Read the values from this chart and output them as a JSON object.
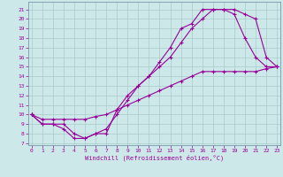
{
  "line1_x": [
    0,
    1,
    2,
    3,
    4,
    5,
    6,
    7,
    8,
    9,
    10,
    11,
    12,
    13,
    14,
    15,
    16,
    17,
    18,
    19,
    20,
    21,
    22,
    23
  ],
  "line1_y": [
    10,
    9,
    9,
    9,
    8,
    7.5,
    8,
    8,
    10.5,
    12,
    13,
    14,
    15.5,
    17,
    19,
    19.5,
    21,
    21,
    21,
    21,
    20.5,
    20,
    16,
    15
  ],
  "line2_x": [
    0,
    1,
    2,
    3,
    4,
    5,
    6,
    7,
    8,
    9,
    10,
    11,
    12,
    13,
    14,
    15,
    16,
    17,
    18,
    19,
    20,
    21,
    22,
    23
  ],
  "line2_y": [
    10,
    9,
    9,
    8.5,
    7.5,
    7.5,
    8,
    8.5,
    10,
    11.5,
    13,
    14,
    15,
    16,
    17.5,
    19,
    20,
    21,
    21,
    20.5,
    18,
    16,
    15,
    15
  ],
  "line3_x": [
    0,
    1,
    2,
    3,
    4,
    5,
    6,
    7,
    8,
    9,
    10,
    11,
    12,
    13,
    14,
    15,
    16,
    17,
    18,
    19,
    20,
    21,
    22,
    23
  ],
  "line3_y": [
    10,
    9.5,
    9.5,
    9.5,
    9.5,
    9.5,
    9.8,
    10.0,
    10.5,
    11.0,
    11.5,
    12.0,
    12.5,
    13.0,
    13.5,
    14.0,
    14.5,
    14.5,
    14.5,
    14.5,
    14.5,
    14.5,
    14.8,
    15.0
  ],
  "color": "#990099",
  "bg_color": "#cce8e8",
  "xlabel": "Windchill (Refroidissement éolien,°C)",
  "ylabel_ticks": [
    7,
    8,
    9,
    10,
    11,
    12,
    13,
    14,
    15,
    16,
    17,
    18,
    19,
    20,
    21
  ],
  "xlabel_ticks": [
    0,
    1,
    2,
    3,
    4,
    5,
    6,
    7,
    8,
    9,
    10,
    11,
    12,
    13,
    14,
    15,
    16,
    17,
    18,
    19,
    20,
    21,
    22,
    23
  ],
  "xlim": [
    -0.3,
    23.3
  ],
  "ylim": [
    6.8,
    21.8
  ],
  "grid_color": "#aacccc",
  "spine_color": "#7799aa"
}
